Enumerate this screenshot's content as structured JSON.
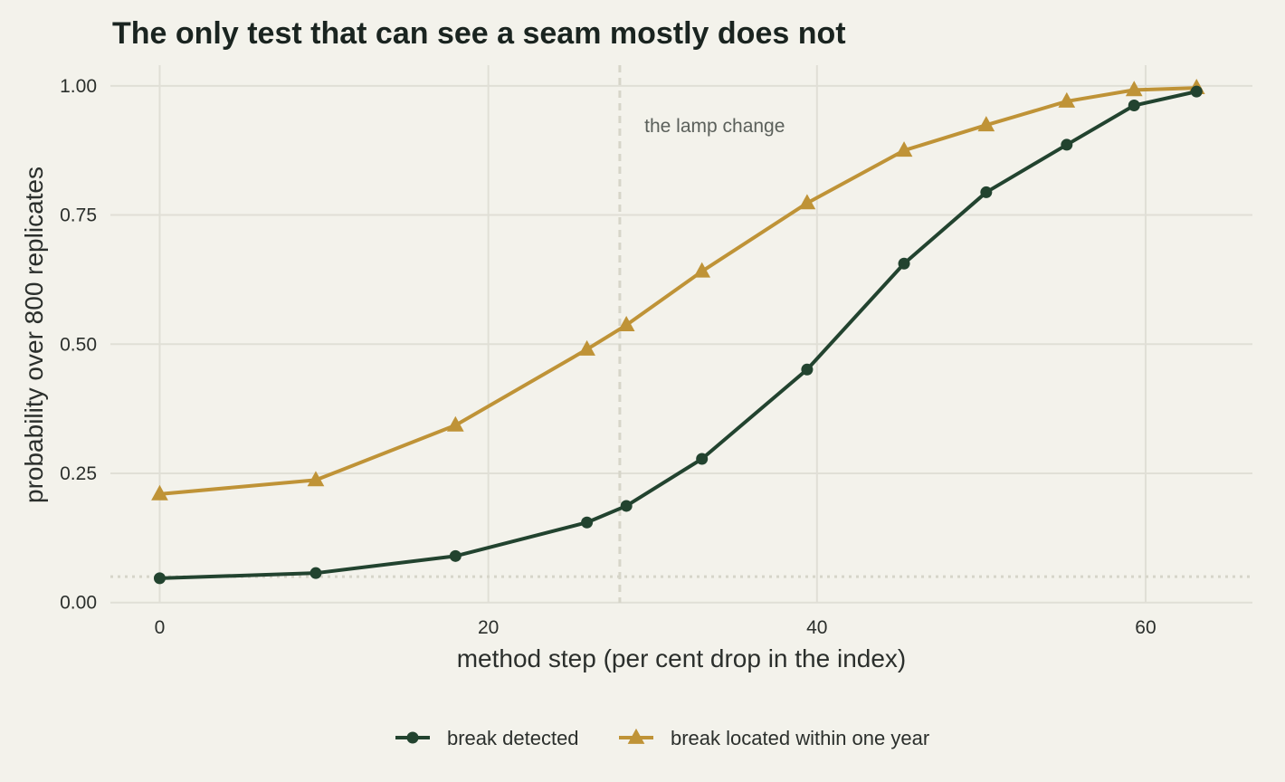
{
  "chart_data": {
    "type": "line",
    "title": "The only test that can see a seam mostly does not",
    "xlabel": "method step (per cent drop in the index)",
    "ylabel": "probability over 800 replicates",
    "xlim": [
      -3,
      66.5
    ],
    "ylim": [
      -0.0005,
      1.04
    ],
    "x_ticks": [
      0,
      20,
      40,
      60
    ],
    "x_tick_labels": [
      "0",
      "20",
      "40",
      "60"
    ],
    "y_ticks": [
      0,
      0.25,
      0.5,
      0.75,
      1.0
    ],
    "y_tick_labels": [
      "0.00",
      "0.25",
      "0.50",
      "0.75",
      "1.00"
    ],
    "grid": true,
    "legend_position": "bottom",
    "reference_lines": [
      {
        "orientation": "vertical",
        "x": 28,
        "style": "dashed",
        "color": "#d6d5c9"
      },
      {
        "orientation": "horizontal",
        "y": 0.05,
        "style": "dotted",
        "color": "#d6d5c9"
      }
    ],
    "annotations": [
      {
        "text": "the lamp change",
        "x": 29.5,
        "y": 0.91
      }
    ],
    "x": [
      0,
      9.5,
      18,
      26,
      28.4,
      33,
      39.4,
      45.3,
      50.3,
      55.2,
      59.3,
      63.1
    ],
    "series": [
      {
        "name": "break detected",
        "color": "#22432f",
        "marker": "circle",
        "values": [
          0.047,
          0.057,
          0.09,
          0.155,
          0.187,
          0.278,
          0.451,
          0.656,
          0.794,
          0.886,
          0.962,
          0.989
        ]
      },
      {
        "name": "break located within one year",
        "color": "#bf9337",
        "marker": "triangle",
        "values": [
          0.21,
          0.237,
          0.343,
          0.49,
          0.537,
          0.641,
          0.773,
          0.875,
          0.924,
          0.97,
          0.992,
          0.996
        ]
      }
    ]
  }
}
